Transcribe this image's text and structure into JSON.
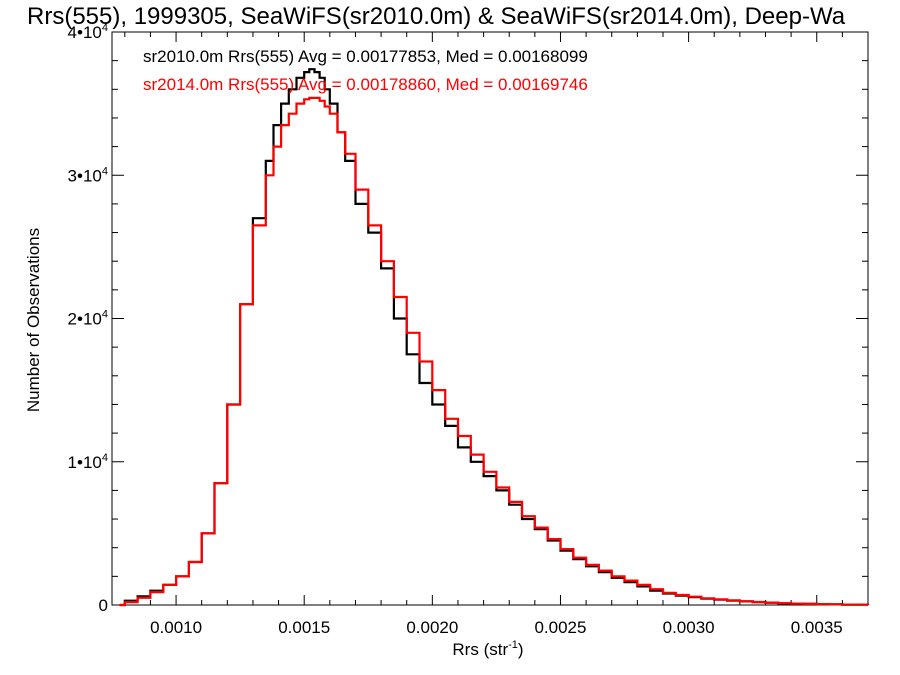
{
  "chart_data": {
    "type": "line",
    "title": "Rrs(555), 1999305, SeaWiFS(sr2010.0m) & SeaWiFS(sr2014.0m), Deep-Wa",
    "xlabel_main": "Rrs (str",
    "xlabel_sup": "-1",
    "xlabel_end": ")",
    "ylabel": "Number of Observations",
    "xlim": [
      0.00075,
      0.0037
    ],
    "ylim": [
      0,
      40000
    ],
    "x_ticks": [
      0.001,
      0.0015,
      0.002,
      0.0025,
      0.003,
      0.0035
    ],
    "x_tick_labels": [
      "0.0010",
      "0.0015",
      "0.0020",
      "0.0025",
      "0.0030",
      "0.0035"
    ],
    "y_ticks": [
      {
        "value": 0,
        "base": "0",
        "exp": ""
      },
      {
        "value": 10000,
        "base": "1•10",
        "exp": "4"
      },
      {
        "value": 20000,
        "base": "2•10",
        "exp": "4"
      },
      {
        "value": 30000,
        "base": "3•10",
        "exp": "4"
      },
      {
        "value": 40000,
        "base": "4•10",
        "exp": "4"
      }
    ],
    "grid": false,
    "legend_position": "top-left",
    "series": [
      {
        "name": "sr2010.0m Rrs(555)  Avg = 0.00177853, Med = 0.00168099",
        "color": "#000000",
        "x": [
          0.00078,
          0.0008,
          0.00085,
          0.0009,
          0.00095,
          0.001,
          0.00105,
          0.0011,
          0.00115,
          0.0012,
          0.00125,
          0.0013,
          0.00135,
          0.00138,
          0.00141,
          0.00144,
          0.00147,
          0.0015,
          0.00152,
          0.00154,
          0.00156,
          0.00158,
          0.0016,
          0.00163,
          0.00166,
          0.0017,
          0.00175,
          0.0018,
          0.00185,
          0.0019,
          0.00195,
          0.002,
          0.00205,
          0.0021,
          0.00215,
          0.0022,
          0.00225,
          0.0023,
          0.00235,
          0.0024,
          0.00245,
          0.0025,
          0.00255,
          0.0026,
          0.00265,
          0.0027,
          0.00275,
          0.0028,
          0.00285,
          0.0029,
          0.00295,
          0.003,
          0.00305,
          0.0031,
          0.00315,
          0.0032,
          0.00325,
          0.0033,
          0.00335,
          0.0034,
          0.00345,
          0.0035,
          0.00355,
          0.0036,
          0.00365,
          0.0037
        ],
        "values": [
          0,
          300,
          600,
          1000,
          1400,
          2000,
          3000,
          5000,
          8500,
          14000,
          21000,
          27000,
          31000,
          33500,
          35000,
          36000,
          36800,
          37200,
          37400,
          37200,
          36800,
          36000,
          35000,
          33000,
          31000,
          28000,
          26000,
          23500,
          20000,
          17500,
          15500,
          14000,
          12500,
          11000,
          10000,
          9000,
          8000,
          7000,
          6000,
          5300,
          4500,
          3800,
          3200,
          2700,
          2300,
          1900,
          1600,
          1300,
          1000,
          800,
          650,
          550,
          450,
          380,
          310,
          250,
          200,
          160,
          120,
          100,
          80,
          60,
          45,
          30,
          20,
          10
        ]
      },
      {
        "name": "sr2014.0m Rrs(555)  Avg = 0.00178860, Med = 0.00169746",
        "color": "#ff0000",
        "x": [
          0.00078,
          0.0008,
          0.00085,
          0.0009,
          0.00095,
          0.001,
          0.00105,
          0.0011,
          0.00115,
          0.0012,
          0.00125,
          0.0013,
          0.00135,
          0.00138,
          0.00141,
          0.00144,
          0.00147,
          0.0015,
          0.00152,
          0.00154,
          0.00156,
          0.00158,
          0.0016,
          0.00163,
          0.00166,
          0.0017,
          0.00175,
          0.0018,
          0.00185,
          0.0019,
          0.00195,
          0.002,
          0.00205,
          0.0021,
          0.00215,
          0.0022,
          0.00225,
          0.0023,
          0.00235,
          0.0024,
          0.00245,
          0.0025,
          0.00255,
          0.0026,
          0.00265,
          0.0027,
          0.00275,
          0.0028,
          0.00285,
          0.0029,
          0.00295,
          0.003,
          0.00305,
          0.0031,
          0.00315,
          0.0032,
          0.00325,
          0.0033,
          0.00335,
          0.0034,
          0.00345,
          0.0035,
          0.00355,
          0.0036,
          0.00365,
          0.0037
        ],
        "values": [
          0,
          200,
          500,
          900,
          1400,
          2000,
          3000,
          5000,
          8500,
          14000,
          21000,
          26500,
          30000,
          32000,
          33500,
          34300,
          35000,
          35300,
          35400,
          35400,
          35200,
          34800,
          34300,
          33000,
          31500,
          29000,
          26500,
          24000,
          21500,
          19000,
          17000,
          15000,
          13000,
          11800,
          10500,
          9300,
          8200,
          7200,
          6200,
          5400,
          4600,
          3900,
          3300,
          2800,
          2400,
          2000,
          1700,
          1400,
          1100,
          850,
          700,
          580,
          470,
          390,
          320,
          260,
          210,
          165,
          125,
          100,
          80,
          60,
          45,
          30,
          20,
          10
        ]
      }
    ]
  }
}
